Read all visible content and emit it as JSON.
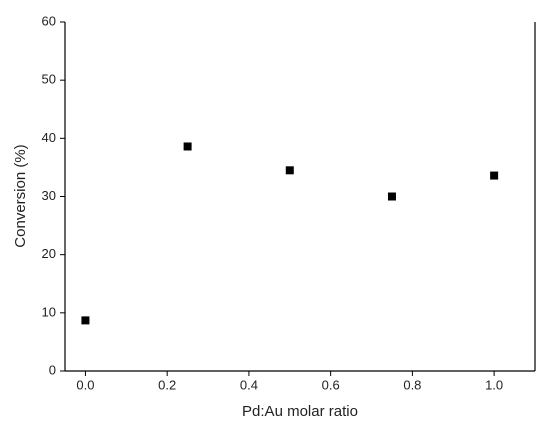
{
  "chart_data": {
    "type": "scatter",
    "x_label": "Pd:Au molar ratio",
    "y_label": "Conversion (%)",
    "x": [
      0,
      0.25,
      0.5,
      0.75,
      1.0
    ],
    "values": [
      8.7,
      38.6,
      34.5,
      30.0,
      33.6
    ],
    "color": "#000000",
    "xlim": [
      -0.05,
      1.1
    ],
    "ylim": [
      0,
      60
    ],
    "xticks": [
      {
        "value": 0,
        "label": "0.0"
      },
      0.2,
      0.4,
      0.6,
      0.8,
      {
        "value": 1,
        "label": "1.0"
      }
    ],
    "yticks": [
      0,
      10,
      20,
      30,
      40,
      50,
      60
    ]
  }
}
